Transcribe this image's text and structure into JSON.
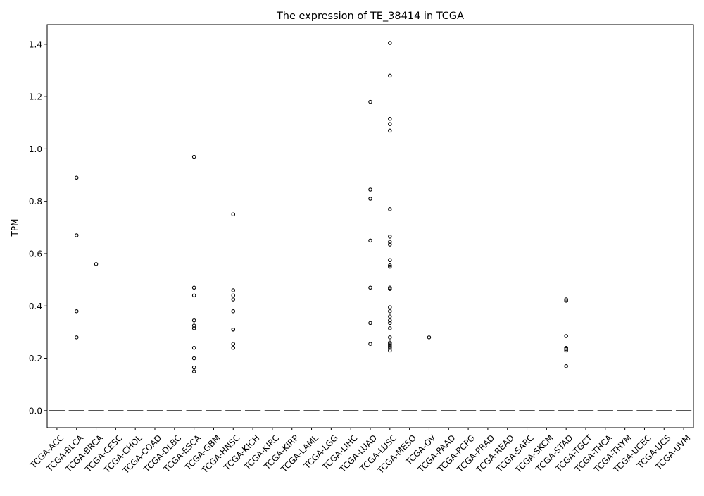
{
  "chart_data": {
    "type": "box",
    "title": "The expression of TE_38414 in TCGA",
    "xlabel": "",
    "ylabel": "TPM",
    "ylim": [
      -0.065,
      1.475
    ],
    "yticks": [
      0.0,
      0.2,
      0.4,
      0.6,
      0.8,
      1.0,
      1.2,
      1.4
    ],
    "ytick_labels": [
      "0.0",
      "0.2",
      "0.4",
      "0.6",
      "0.8",
      "1.0",
      "1.2",
      "1.4"
    ],
    "grid": false,
    "legend": "none",
    "categories": [
      "TCGA-ACC",
      "TCGA-BLCA",
      "TCGA-BRCA",
      "TCGA-CESC",
      "TCGA-CHOL",
      "TCGA-COAD",
      "TCGA-DLBC",
      "TCGA-ESCA",
      "TCGA-GBM",
      "TCGA-HNSC",
      "TCGA-KICH",
      "TCGA-KIRC",
      "TCGA-KIRP",
      "TCGA-LAML",
      "TCGA-LGG",
      "TCGA-LIHC",
      "TCGA-LUAD",
      "TCGA-LUSC",
      "TCGA-MESO",
      "TCGA-OV",
      "TCGA-PAAD",
      "TCGA-PCPG",
      "TCGA-PRAD",
      "TCGA-READ",
      "TCGA-SARC",
      "TCGA-SKCM",
      "TCGA-STAD",
      "TCGA-TGCT",
      "TCGA-THCA",
      "TCGA-THYM",
      "TCGA-UCEC",
      "TCGA-UCS",
      "TCGA-UVM"
    ],
    "median": [
      0,
      0,
      0,
      0,
      0,
      0,
      0,
      0,
      0,
      0,
      0,
      0,
      0,
      0,
      0,
      0,
      0,
      0,
      0,
      0,
      0,
      0,
      0,
      0,
      0,
      0,
      0,
      0,
      0,
      0,
      0,
      0,
      0
    ],
    "outliers": {
      "TCGA-BLCA": [
        0.89,
        0.67,
        0.38,
        0.28
      ],
      "TCGA-BRCA": [
        0.56
      ],
      "TCGA-ESCA": [
        0.97,
        0.47,
        0.44,
        0.345,
        0.325,
        0.315,
        0.24,
        0.2,
        0.165,
        0.15
      ],
      "TCGA-HNSC": [
        0.75,
        0.46,
        0.44,
        0.425,
        0.38,
        0.31,
        0.31,
        0.255,
        0.24
      ],
      "TCGA-LUAD": [
        1.18,
        0.845,
        0.81,
        0.65,
        0.47,
        0.335,
        0.255
      ],
      "TCGA-LUSC": [
        1.405,
        1.28,
        1.115,
        1.095,
        1.07,
        0.77,
        0.665,
        0.645,
        0.635,
        0.575,
        0.555,
        0.55,
        0.47,
        0.465,
        0.395,
        0.38,
        0.36,
        0.345,
        0.335,
        0.315,
        0.28,
        0.26,
        0.255,
        0.25,
        0.245,
        0.24,
        0.23
      ],
      "TCGA-OV": [
        0.28
      ],
      "TCGA-STAD": [
        0.425,
        0.42,
        0.285,
        0.24,
        0.235,
        0.23,
        0.17
      ]
    }
  }
}
